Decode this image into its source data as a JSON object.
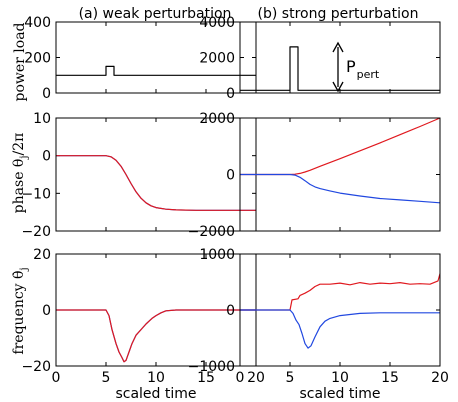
{
  "titles": {
    "left": "(a) weak perturbation",
    "right": "(b) strong perturbation"
  },
  "row_labels": {
    "power": "power load",
    "phase": "phase θ",
    "phase_sub": "j",
    "phase_tail": "/2π",
    "freq": "frequency θ̇",
    "freq_sub": "j"
  },
  "annotation": {
    "P": "P",
    "sub": "pert"
  },
  "colors": {
    "series1": "#e0191f",
    "series2": "#2148e0",
    "axis": "#000000"
  },
  "chart_data": [
    {
      "panel": "power-weak",
      "type": "line",
      "title": "(a) weak perturbation",
      "xlabel": "",
      "ylabel": "power load",
      "xlim": [
        0,
        20
      ],
      "ylim": [
        0,
        400
      ],
      "xticks": [],
      "yticks": [
        "0",
        "200",
        "400"
      ],
      "series": [
        {
          "color": "#000000",
          "x": [
            0,
            5.0,
            5.0,
            5.8,
            5.8,
            20
          ],
          "y": [
            100,
            100,
            150,
            150,
            100,
            100
          ]
        }
      ]
    },
    {
      "panel": "power-strong",
      "type": "line",
      "title": "(b) strong perturbation",
      "xlabel": "",
      "ylabel": "",
      "xlim": [
        0,
        20
      ],
      "ylim": [
        0,
        4000
      ],
      "xticks": [],
      "yticks": [
        "0",
        "2000",
        "4000"
      ],
      "series": [
        {
          "color": "#000000",
          "x": [
            0,
            5.0,
            5.0,
            5.8,
            5.8,
            20
          ],
          "y": [
            150,
            150,
            2600,
            2600,
            150,
            150
          ]
        }
      ]
    },
    {
      "panel": "phase-weak",
      "type": "line",
      "title": "",
      "xlabel": "",
      "ylabel": "phase θj/2π",
      "xlim": [
        0,
        20
      ],
      "ylim": [
        -20,
        10
      ],
      "xticks": [],
      "yticks": [
        "−20",
        "−10",
        "0",
        "10"
      ],
      "series": [
        {
          "color": "#2148e0",
          "x": [
            0,
            5,
            5.5,
            6,
            6.5,
            7,
            7.5,
            8,
            8.5,
            9,
            9.5,
            10,
            11,
            12,
            14,
            20
          ],
          "y": [
            0,
            0,
            -0.3,
            -1.2,
            -2.8,
            -5.0,
            -7.4,
            -9.6,
            -11.3,
            -12.5,
            -13.3,
            -13.8,
            -14.2,
            -14.4,
            -14.5,
            -14.5
          ]
        },
        {
          "color": "#e0191f",
          "x": [
            0,
            5,
            5.5,
            6,
            6.5,
            7,
            7.5,
            8,
            8.5,
            9,
            9.5,
            10,
            11,
            12,
            14,
            20
          ],
          "y": [
            0,
            0,
            -0.3,
            -1.2,
            -2.8,
            -5.0,
            -7.4,
            -9.6,
            -11.3,
            -12.5,
            -13.3,
            -13.8,
            -14.2,
            -14.4,
            -14.5,
            -14.5
          ]
        }
      ]
    },
    {
      "panel": "phase-strong",
      "type": "line",
      "title": "",
      "xlabel": "",
      "ylabel": "",
      "xlim": [
        0,
        20
      ],
      "ylim": [
        -2000,
        2000
      ],
      "xticks": [],
      "yticks": [
        "−2000",
        "0",
        "2000"
      ],
      "series": [
        {
          "color": "#e0191f",
          "x": [
            0,
            5,
            5.5,
            6,
            6.5,
            7,
            8,
            10,
            12,
            14,
            16,
            18,
            20
          ],
          "y": [
            0,
            0,
            10,
            40,
            90,
            150,
            290,
            560,
            840,
            1120,
            1410,
            1700,
            2000
          ]
        },
        {
          "color": "#2148e0",
          "x": [
            0,
            5,
            5.5,
            6,
            6.5,
            7,
            7.5,
            8,
            9,
            10,
            12,
            14,
            16,
            18,
            20
          ],
          "y": [
            0,
            0,
            -20,
            -100,
            -220,
            -350,
            -440,
            -500,
            -580,
            -660,
            -760,
            -850,
            -900,
            -950,
            -1000
          ]
        }
      ]
    },
    {
      "panel": "freq-weak",
      "type": "line",
      "title": "",
      "xlabel": "scaled time",
      "ylabel": "frequency θ̇j",
      "xlim": [
        0,
        20
      ],
      "ylim": [
        -20,
        20
      ],
      "xticks": [
        "0",
        "5",
        "10",
        "15",
        "20"
      ],
      "yticks": [
        "−20",
        "0",
        "20"
      ],
      "series": [
        {
          "color": "#2148e0",
          "x": [
            0,
            5.0,
            5.3,
            5.6,
            6.0,
            6.3,
            6.6,
            6.8,
            7.0,
            7.3,
            7.6,
            8.0,
            8.5,
            9.0,
            9.3,
            9.6,
            10.0,
            10.5,
            11,
            12,
            14,
            20
          ],
          "y": [
            0,
            0,
            -2,
            -7,
            -12,
            -15,
            -17,
            -18.5,
            -18,
            -15,
            -12,
            -9,
            -7,
            -5,
            -4,
            -3,
            -2,
            -1,
            -0.3,
            0,
            0,
            0
          ]
        },
        {
          "color": "#e0191f",
          "x": [
            0,
            5.0,
            5.3,
            5.6,
            6.0,
            6.3,
            6.6,
            6.8,
            7.0,
            7.3,
            7.6,
            8.0,
            8.5,
            9.0,
            9.3,
            9.6,
            10.0,
            10.5,
            11,
            12,
            14,
            20
          ],
          "y": [
            0,
            0,
            -2,
            -7,
            -12,
            -15,
            -17,
            -18.5,
            -18,
            -15,
            -12,
            -9,
            -7,
            -5,
            -4,
            -3,
            -2,
            -1,
            -0.3,
            0,
            0,
            0
          ]
        }
      ]
    },
    {
      "panel": "freq-strong",
      "type": "line",
      "title": "",
      "xlabel": "scaled time",
      "ylabel": "",
      "xlim": [
        0,
        20
      ],
      "ylim": [
        -1000,
        1000
      ],
      "xticks": [
        "0",
        "5",
        "10",
        "15",
        "20"
      ],
      "yticks": [
        "−1000",
        "0",
        "1000"
      ],
      "series": [
        {
          "color": "#e0191f",
          "x": [
            0,
            5.0,
            5.2,
            5.8,
            6.0,
            6.5,
            7.0,
            7.5,
            8.0,
            9.0,
            10,
            11,
            12,
            13,
            14,
            15,
            16,
            17,
            18,
            19,
            19.8,
            20
          ],
          "y": [
            0,
            0,
            180,
            200,
            260,
            300,
            350,
            420,
            460,
            460,
            480,
            450,
            490,
            460,
            480,
            470,
            490,
            460,
            470,
            460,
            520,
            650
          ]
        },
        {
          "color": "#2148e0",
          "x": [
            0,
            5.0,
            5.3,
            5.6,
            5.9,
            6.2,
            6.5,
            6.8,
            7.1,
            7.5,
            8.0,
            8.5,
            9.0,
            10,
            11,
            12,
            14,
            16,
            18,
            20
          ],
          "y": [
            0,
            0,
            -60,
            -180,
            -260,
            -420,
            -600,
            -680,
            -640,
            -480,
            -300,
            -200,
            -150,
            -100,
            -80,
            -60,
            -50,
            -50,
            -50,
            -50
          ]
        }
      ]
    }
  ]
}
